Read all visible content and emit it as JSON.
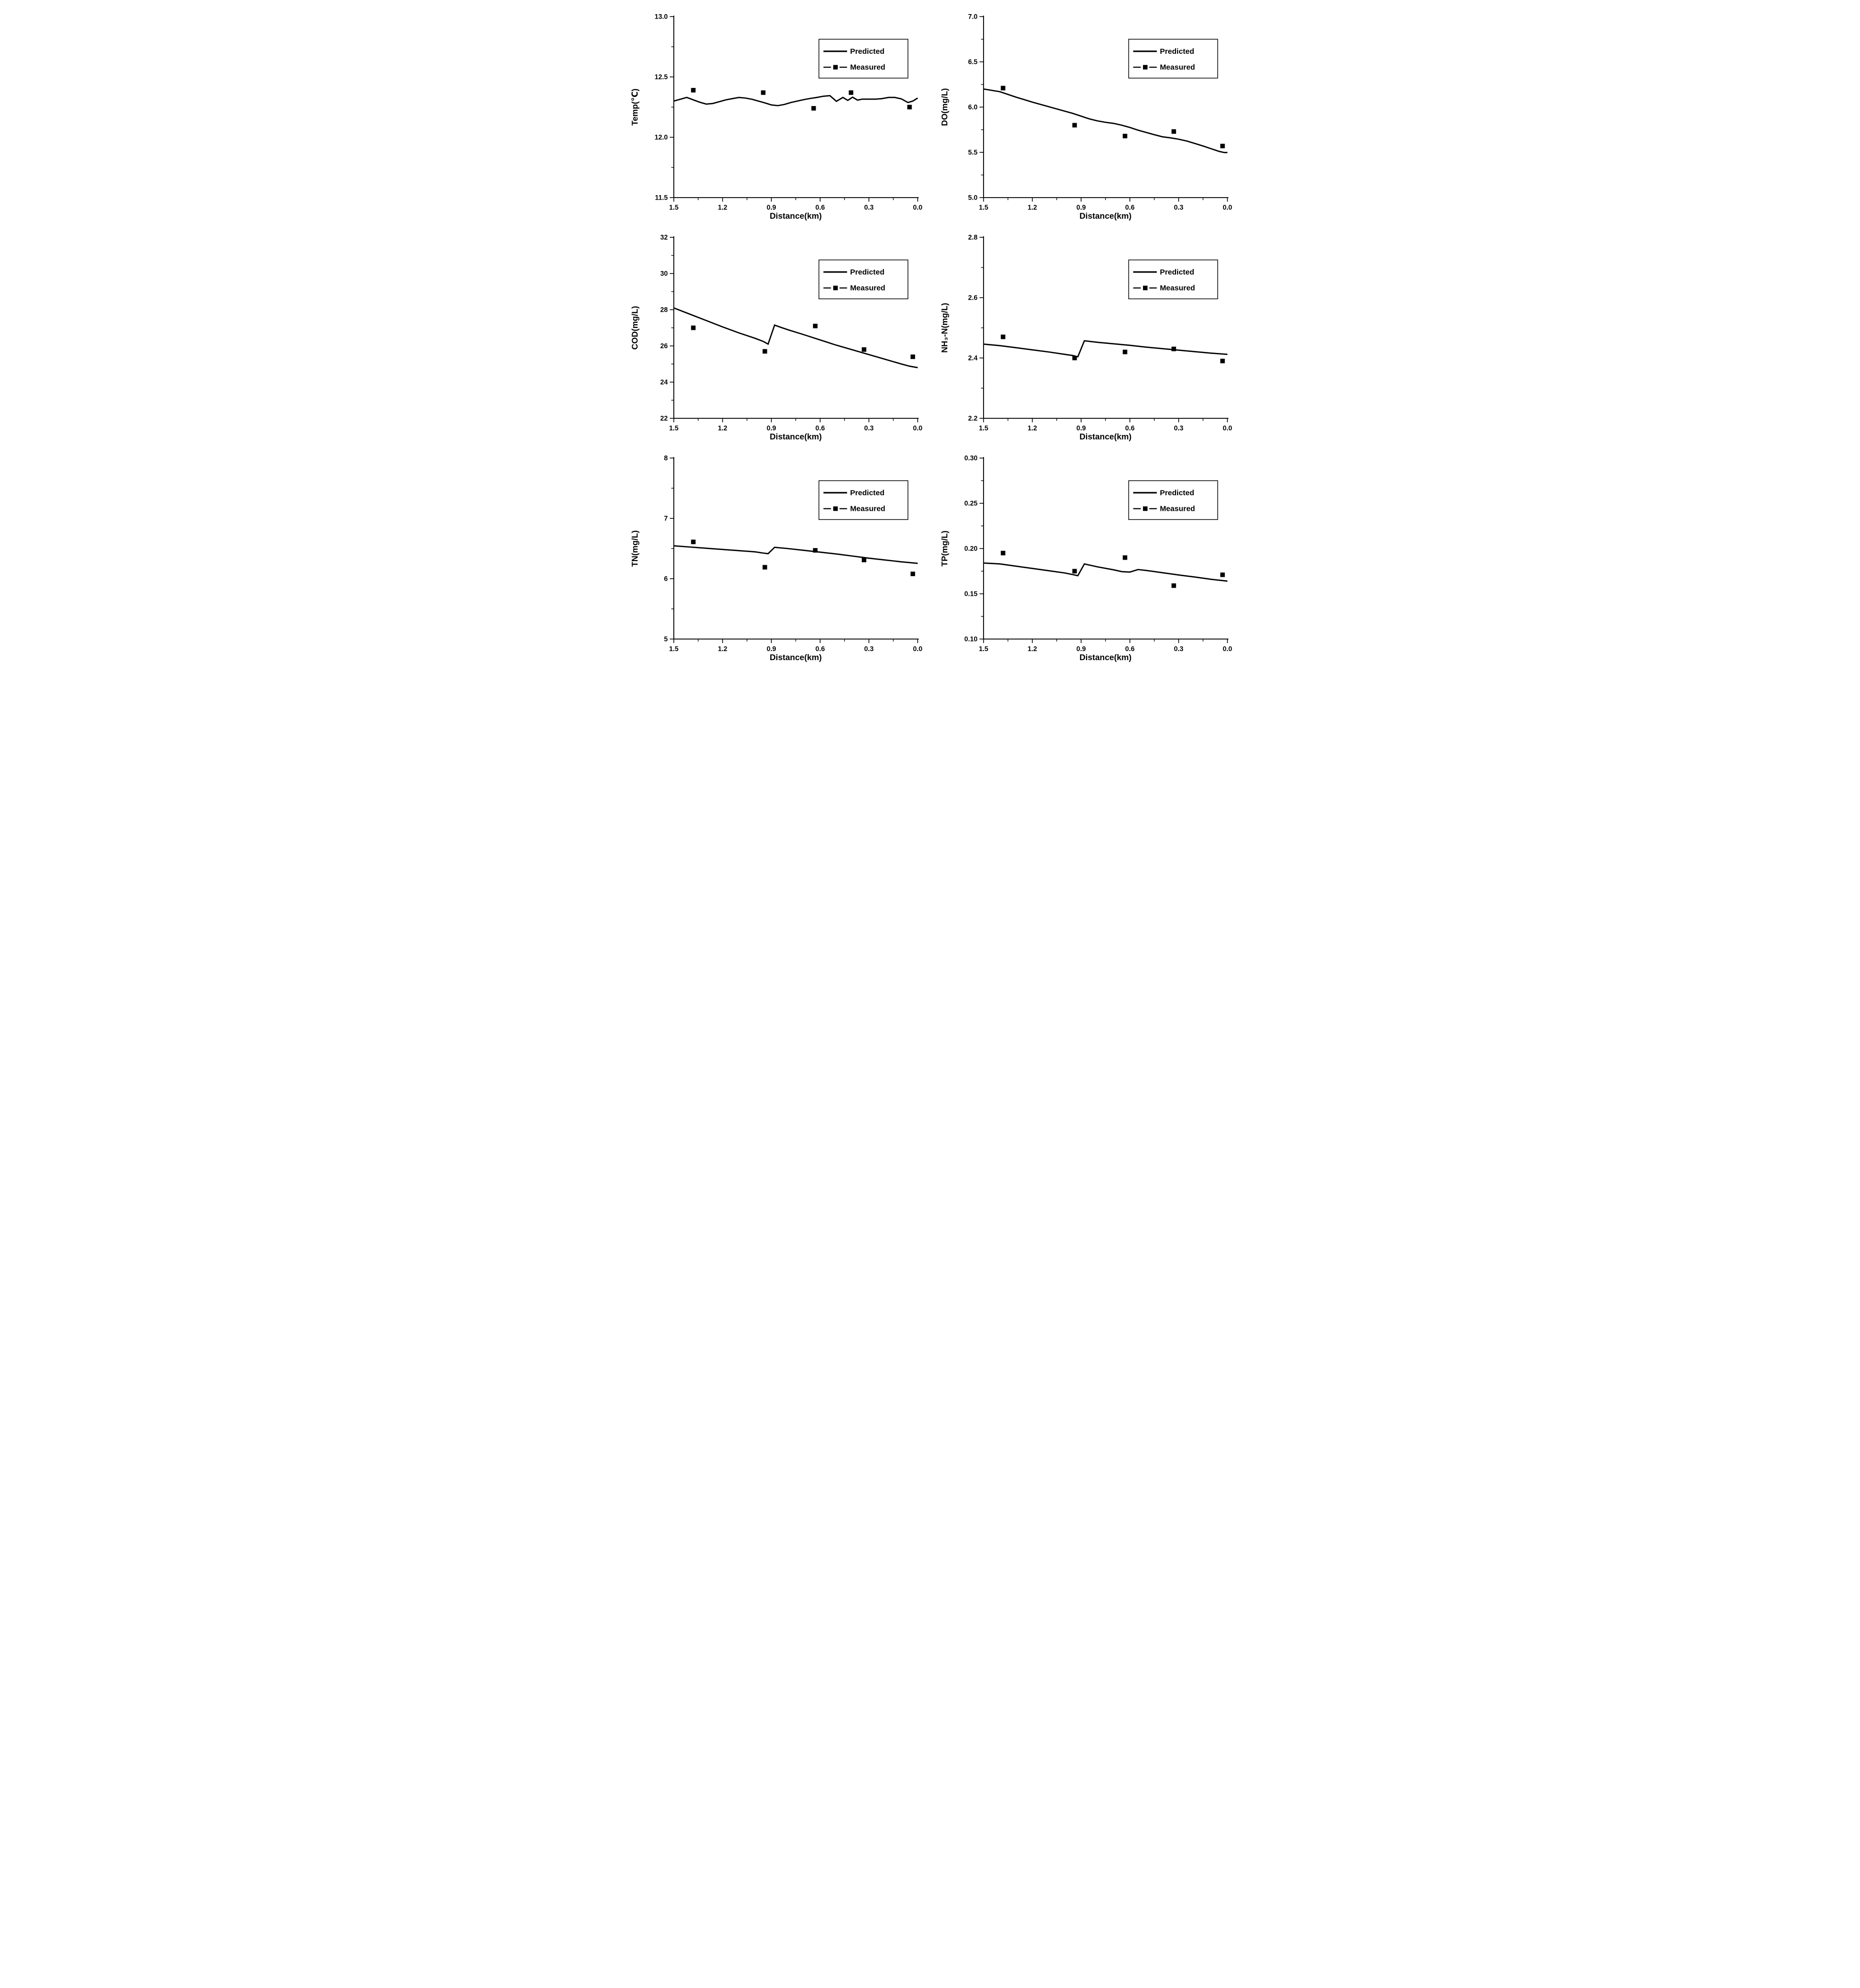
{
  "figure": {
    "background_color": "#ffffff",
    "ink_color": "#000000",
    "layout": "2x3 grid of predicted-vs-measured water quality charts"
  },
  "legend": {
    "position": "top-right-inside-plot",
    "entries": [
      {
        "label": "Predicted",
        "style": "solid-line"
      },
      {
        "label": "Measured",
        "style": "dash-square-dash"
      }
    ]
  },
  "xaxis": {
    "label": "Distance(km)",
    "min": 0.0,
    "max": 1.5,
    "direction": "reversed",
    "major_tick_values": [
      1.5,
      1.2,
      0.9,
      0.6,
      0.3,
      0.0
    ],
    "major_tick_labels": [
      "1.5",
      "1.2",
      "0.9",
      "0.6",
      "0.3",
      "0.0"
    ],
    "minor_tick_values": [
      1.35,
      1.05,
      0.75,
      0.45,
      0.15
    ]
  },
  "chart_data": [
    {
      "type": "line",
      "id": "temp",
      "ylabel": "Temp(℃)",
      "xlabel": "Distance(km)",
      "ylim": [
        11.5,
        13.0
      ],
      "ytick_values": [
        11.5,
        12.0,
        12.5,
        13.0
      ],
      "ytick_labels": [
        "11.5",
        "12.0",
        "12.5",
        "13.0"
      ],
      "yminor_values": [
        11.75,
        12.25,
        12.75
      ],
      "grid": false,
      "series": [
        {
          "name": "Predicted",
          "style": "solid-line",
          "points": [
            [
              1.5,
              12.3
            ],
            [
              1.46,
              12.315
            ],
            [
              1.42,
              12.33
            ],
            [
              1.38,
              12.31
            ],
            [
              1.34,
              12.29
            ],
            [
              1.3,
              12.275
            ],
            [
              1.26,
              12.28
            ],
            [
              1.22,
              12.295
            ],
            [
              1.18,
              12.31
            ],
            [
              1.14,
              12.32
            ],
            [
              1.1,
              12.33
            ],
            [
              1.06,
              12.325
            ],
            [
              1.02,
              12.315
            ],
            [
              0.98,
              12.3
            ],
            [
              0.94,
              12.285
            ],
            [
              0.9,
              12.268
            ],
            [
              0.86,
              12.262
            ],
            [
              0.82,
              12.272
            ],
            [
              0.78,
              12.288
            ],
            [
              0.74,
              12.3
            ],
            [
              0.7,
              12.312
            ],
            [
              0.66,
              12.322
            ],
            [
              0.62,
              12.33
            ],
            [
              0.58,
              12.34
            ],
            [
              0.54,
              12.345
            ],
            [
              0.5,
              12.298
            ],
            [
              0.46,
              12.33
            ],
            [
              0.43,
              12.306
            ],
            [
              0.4,
              12.332
            ],
            [
              0.37,
              12.308
            ],
            [
              0.34,
              12.316
            ],
            [
              0.3,
              12.316
            ],
            [
              0.26,
              12.316
            ],
            [
              0.22,
              12.32
            ],
            [
              0.18,
              12.33
            ],
            [
              0.14,
              12.33
            ],
            [
              0.1,
              12.318
            ],
            [
              0.06,
              12.288
            ],
            [
              0.03,
              12.3
            ],
            [
              0.0,
              12.325
            ]
          ]
        },
        {
          "name": "Measured",
          "style": "square-markers",
          "points": [
            [
              1.38,
              12.39
            ],
            [
              0.95,
              12.37
            ],
            [
              0.64,
              12.24
            ],
            [
              0.41,
              12.37
            ],
            [
              0.05,
              12.25
            ]
          ]
        }
      ]
    },
    {
      "type": "line",
      "id": "do",
      "ylabel": "DO(mg/L)",
      "xlabel": "Distance(km)",
      "ylim": [
        5.0,
        7.0
      ],
      "ytick_values": [
        5.0,
        5.5,
        6.0,
        6.5,
        7.0
      ],
      "ytick_labels": [
        "5.0",
        "5.5",
        "6.0",
        "6.5",
        "7.0"
      ],
      "yminor_values": [
        5.25,
        5.75,
        6.25,
        6.75
      ],
      "grid": false,
      "series": [
        {
          "name": "Predicted",
          "style": "solid-line",
          "points": [
            [
              1.5,
              6.2
            ],
            [
              1.4,
              6.17
            ],
            [
              1.3,
              6.11
            ],
            [
              1.2,
              6.055
            ],
            [
              1.1,
              6.005
            ],
            [
              1.0,
              5.955
            ],
            [
              0.95,
              5.93
            ],
            [
              0.9,
              5.9
            ],
            [
              0.85,
              5.87
            ],
            [
              0.8,
              5.848
            ],
            [
              0.75,
              5.832
            ],
            [
              0.7,
              5.82
            ],
            [
              0.65,
              5.8
            ],
            [
              0.6,
              5.775
            ],
            [
              0.55,
              5.745
            ],
            [
              0.5,
              5.72
            ],
            [
              0.45,
              5.695
            ],
            [
              0.4,
              5.672
            ],
            [
              0.35,
              5.66
            ],
            [
              0.3,
              5.645
            ],
            [
              0.25,
              5.625
            ],
            [
              0.2,
              5.598
            ],
            [
              0.15,
              5.57
            ],
            [
              0.1,
              5.54
            ],
            [
              0.05,
              5.51
            ],
            [
              0.02,
              5.498
            ],
            [
              0.0,
              5.498
            ]
          ]
        },
        {
          "name": "Measured",
          "style": "square-markers",
          "points": [
            [
              1.38,
              6.21
            ],
            [
              0.94,
              5.8
            ],
            [
              0.63,
              5.68
            ],
            [
              0.33,
              5.73
            ],
            [
              0.03,
              5.57
            ]
          ]
        }
      ]
    },
    {
      "type": "line",
      "id": "cod",
      "ylabel": "COD(mg/L)",
      "xlabel": "Distance(km)",
      "ylim": [
        22,
        32
      ],
      "ytick_values": [
        22,
        24,
        26,
        28,
        30,
        32
      ],
      "ytick_labels": [
        "22",
        "24",
        "26",
        "28",
        "30",
        "32"
      ],
      "yminor_values": [
        23,
        25,
        27,
        29,
        31
      ],
      "grid": false,
      "series": [
        {
          "name": "Predicted",
          "style": "solid-line",
          "points": [
            [
              1.5,
              28.1
            ],
            [
              1.4,
              27.75
            ],
            [
              1.3,
              27.4
            ],
            [
              1.2,
              27.05
            ],
            [
              1.1,
              26.72
            ],
            [
              1.0,
              26.42
            ],
            [
              0.95,
              26.25
            ],
            [
              0.92,
              26.1
            ],
            [
              0.88,
              27.15
            ],
            [
              0.84,
              27.02
            ],
            [
              0.8,
              26.9
            ],
            [
              0.7,
              26.62
            ],
            [
              0.6,
              26.33
            ],
            [
              0.5,
              26.04
            ],
            [
              0.4,
              25.78
            ],
            [
              0.3,
              25.52
            ],
            [
              0.2,
              25.26
            ],
            [
              0.1,
              25.0
            ],
            [
              0.05,
              24.88
            ],
            [
              0.0,
              24.8
            ]
          ]
        },
        {
          "name": "Measured",
          "style": "square-markers",
          "points": [
            [
              1.38,
              27.0
            ],
            [
              0.94,
              25.7
            ],
            [
              0.63,
              27.1
            ],
            [
              0.33,
              25.8
            ],
            [
              0.03,
              25.4
            ]
          ]
        }
      ]
    },
    {
      "type": "line",
      "id": "nh3n",
      "ylabel": "NH₃-N(mg/L)",
      "xlabel": "Distance(km)",
      "ylim": [
        2.2,
        2.8
      ],
      "ytick_values": [
        2.2,
        2.4,
        2.6,
        2.8
      ],
      "ytick_labels": [
        "2.2",
        "2.4",
        "2.6",
        "2.8"
      ],
      "yminor_values": [
        2.3,
        2.5,
        2.7
      ],
      "grid": false,
      "series": [
        {
          "name": "Predicted",
          "style": "solid-line",
          "points": [
            [
              1.5,
              2.446
            ],
            [
              1.4,
              2.441
            ],
            [
              1.3,
              2.434
            ],
            [
              1.2,
              2.427
            ],
            [
              1.1,
              2.42
            ],
            [
              1.0,
              2.412
            ],
            [
              0.95,
              2.408
            ],
            [
              0.92,
              2.404
            ],
            [
              0.88,
              2.457
            ],
            [
              0.8,
              2.452
            ],
            [
              0.7,
              2.447
            ],
            [
              0.6,
              2.442
            ],
            [
              0.5,
              2.436
            ],
            [
              0.4,
              2.431
            ],
            [
              0.3,
              2.426
            ],
            [
              0.2,
              2.421
            ],
            [
              0.1,
              2.416
            ],
            [
              0.0,
              2.412
            ]
          ]
        },
        {
          "name": "Measured",
          "style": "square-markers",
          "points": [
            [
              1.38,
              2.47
            ],
            [
              0.94,
              2.4
            ],
            [
              0.63,
              2.42
            ],
            [
              0.33,
              2.43
            ],
            [
              0.03,
              2.39
            ]
          ]
        }
      ]
    },
    {
      "type": "line",
      "id": "tn",
      "ylabel": "TN(mg/L)",
      "xlabel": "Distance(km)",
      "ylim": [
        5,
        8
      ],
      "ytick_values": [
        5,
        6,
        7,
        8
      ],
      "ytick_labels": [
        "5",
        "6",
        "7",
        "8"
      ],
      "yminor_values": [
        5.5,
        6.5,
        7.5
      ],
      "grid": false,
      "series": [
        {
          "name": "Predicted",
          "style": "solid-line",
          "points": [
            [
              1.5,
              6.545
            ],
            [
              1.4,
              6.525
            ],
            [
              1.3,
              6.505
            ],
            [
              1.2,
              6.485
            ],
            [
              1.1,
              6.465
            ],
            [
              1.0,
              6.445
            ],
            [
              0.95,
              6.425
            ],
            [
              0.92,
              6.415
            ],
            [
              0.88,
              6.52
            ],
            [
              0.8,
              6.5
            ],
            [
              0.7,
              6.47
            ],
            [
              0.6,
              6.44
            ],
            [
              0.5,
              6.41
            ],
            [
              0.4,
              6.375
            ],
            [
              0.3,
              6.34
            ],
            [
              0.2,
              6.31
            ],
            [
              0.1,
              6.28
            ],
            [
              0.0,
              6.255
            ]
          ]
        },
        {
          "name": "Measured",
          "style": "square-markers",
          "points": [
            [
              1.38,
              6.61
            ],
            [
              0.94,
              6.19
            ],
            [
              0.63,
              6.47
            ],
            [
              0.33,
              6.31
            ],
            [
              0.03,
              6.08
            ]
          ]
        }
      ]
    },
    {
      "type": "line",
      "id": "tp",
      "ylabel": "TP(mg/L)",
      "xlabel": "Distance(km)",
      "ylim": [
        0.1,
        0.3
      ],
      "ytick_values": [
        0.1,
        0.15,
        0.2,
        0.25,
        0.3
      ],
      "ytick_labels": [
        "0.10",
        "0.15",
        "0.20",
        "0.25",
        "0.30"
      ],
      "yminor_values": [
        0.125,
        0.175,
        0.225,
        0.275
      ],
      "grid": false,
      "series": [
        {
          "name": "Predicted",
          "style": "solid-line",
          "points": [
            [
              1.5,
              0.184
            ],
            [
              1.4,
              0.183
            ],
            [
              1.3,
              0.1805
            ],
            [
              1.2,
              0.178
            ],
            [
              1.1,
              0.1755
            ],
            [
              1.0,
              0.173
            ],
            [
              0.95,
              0.1712
            ],
            [
              0.92,
              0.17
            ],
            [
              0.88,
              0.183
            ],
            [
              0.8,
              0.1798
            ],
            [
              0.7,
              0.1765
            ],
            [
              0.65,
              0.1745
            ],
            [
              0.6,
              0.174
            ],
            [
              0.55,
              0.1768
            ],
            [
              0.5,
              0.1758
            ],
            [
              0.4,
              0.1733
            ],
            [
              0.3,
              0.1708
            ],
            [
              0.2,
              0.1685
            ],
            [
              0.1,
              0.166
            ],
            [
              0.0,
              0.164
            ]
          ]
        },
        {
          "name": "Measured",
          "style": "square-markers",
          "points": [
            [
              1.38,
              0.195
            ],
            [
              0.94,
              0.175
            ],
            [
              0.63,
              0.19
            ],
            [
              0.33,
              0.159
            ],
            [
              0.03,
              0.171
            ]
          ]
        }
      ]
    }
  ]
}
